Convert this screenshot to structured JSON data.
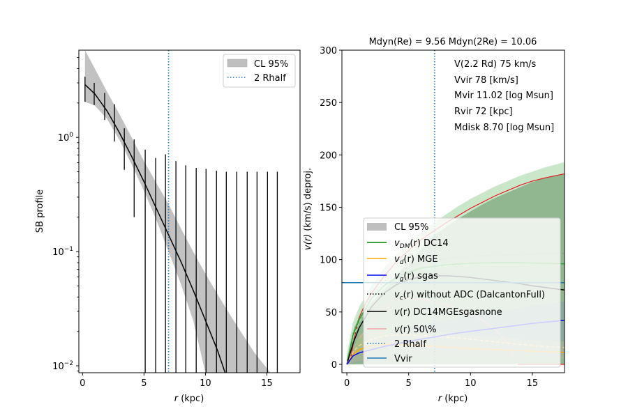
{
  "chart_data": [
    {
      "type": "line",
      "panel": "left",
      "title": "",
      "xlabel": "r (kpc)",
      "xlabel_italic": "r",
      "xlabel_rest": " (kpc)",
      "ylabel": "SB profile",
      "xlim": [
        -0.3,
        17.7
      ],
      "ylim": [
        0.0087,
        5.8
      ],
      "yscale": "log",
      "xticks": [
        0,
        5,
        10,
        15
      ],
      "xtick_labels": [
        "0",
        "5",
        "10",
        "15"
      ],
      "yticks": [
        0.01,
        0.1,
        1
      ],
      "ytick_labels": [
        {
          "base": "10",
          "exp": "−2"
        },
        {
          "base": "10",
          "exp": "−1"
        },
        {
          "base": "10",
          "exp": "0"
        }
      ],
      "model_curve": {
        "name": "model",
        "color": "#000000",
        "x": [
          0.2,
          1.0,
          2.0,
          3.0,
          4.0,
          5.0,
          6.0,
          7.0,
          8.0,
          9.0,
          10.0,
          11.0,
          11.6
        ],
        "y": [
          2.9,
          2.4,
          1.7,
          1.1,
          0.68,
          0.41,
          0.24,
          0.14,
          0.082,
          0.046,
          0.025,
          0.0135,
          0.0087
        ]
      },
      "confidence_band": {
        "name": "CL 95%",
        "color": "#bfbfbf",
        "x": [
          0.2,
          1.0,
          2.0,
          3.0,
          4.0,
          5.0,
          6.0,
          7.0,
          8.0,
          9.0,
          10.0,
          11.0,
          12.0,
          13.0,
          14.0,
          15.0,
          15.3
        ],
        "lower": [
          2.05,
          1.9,
          1.45,
          0.95,
          0.58,
          0.34,
          0.19,
          0.1,
          0.052,
          0.025,
          0.0087,
          0.0087,
          0.0087,
          0.0087,
          0.0087,
          0.0087,
          0.0087
        ],
        "upper": [
          5.8,
          4.0,
          2.5,
          1.6,
          1.0,
          0.62,
          0.4,
          0.26,
          0.16,
          0.1,
          0.064,
          0.042,
          0.028,
          0.019,
          0.013,
          0.0095,
          0.0087
        ]
      },
      "data_points": {
        "name": "SB data",
        "x": [
          0.2,
          0.95,
          1.8,
          2.6,
          3.4,
          4.2,
          5.1,
          5.95,
          6.75,
          7.6,
          8.4,
          9.25,
          10.05,
          10.9,
          11.7,
          12.55,
          13.4,
          14.2,
          15.05,
          15.85
        ],
        "y_low": [
          2.05,
          1.92,
          1.42,
          0.92,
          0.52,
          0.2,
          0.0087,
          0.0087,
          0.0087,
          0.0087,
          0.0087,
          0.0087,
          0.0087,
          0.0087,
          0.0087,
          0.0087,
          0.0087,
          0.0087,
          0.0087,
          0.0087
        ],
        "y_high": [
          3.4,
          3.0,
          2.45,
          1.95,
          1.2,
          0.96,
          0.78,
          0.66,
          0.71,
          0.62,
          0.57,
          0.54,
          0.53,
          0.51,
          0.5,
          0.5,
          0.5,
          0.5,
          0.5,
          0.5
        ]
      },
      "vline": {
        "name": "2 Rhalf",
        "x": 7.0,
        "color": "#1f77b4",
        "style": "dotted"
      },
      "legend": {
        "placement": "upper-right",
        "entries": [
          {
            "label": "CL 95%",
            "kind": "patch",
            "color": "#bfbfbf"
          },
          {
            "label": "2 Rhalf",
            "kind": "dotted",
            "color": "#1f77b4"
          }
        ]
      }
    },
    {
      "type": "line",
      "panel": "right",
      "title": "Mdyn(Re) = 9.56  Mdyn(2Re) = 10.06",
      "xlabel": "r (kpc)",
      "xlabel_italic": "r",
      "xlabel_rest": " (kpc)",
      "ylabel": "v(r) (km/s) deproj.",
      "ylabel_italic": "v(r)",
      "ylabel_rest": " (km/s) deproj.",
      "xlim": [
        -0.4,
        17.6
      ],
      "ylim": [
        -8,
        300
      ],
      "xticks": [
        0,
        5,
        10,
        15
      ],
      "xtick_labels": [
        "0",
        "5",
        "10",
        "15"
      ],
      "yticks": [
        0,
        50,
        100,
        150,
        200,
        250,
        300
      ],
      "ytick_labels": [
        "0",
        "50",
        "100",
        "150",
        "200",
        "250",
        "300"
      ],
      "annotations": [
        "V(2.2 Rd) 75 km/s",
        "Vvir 78 [km/s]",
        "Mvir 11.02 [log Msun]",
        "Rvir 72 [kpc]",
        "Mdisk 8.70 [log Msun]"
      ],
      "bands": [
        {
          "name": "DM band outer",
          "color": "#2ca02c",
          "opacity": 0.25,
          "x": [
            0,
            0.5,
            1,
            2,
            3,
            4,
            5,
            6,
            7,
            8,
            9,
            10,
            11,
            12,
            13,
            14,
            15,
            16,
            17.6
          ],
          "lower": [
            0,
            0,
            0,
            0,
            0,
            0,
            0,
            0,
            0,
            0,
            0,
            0,
            0,
            0,
            0,
            0,
            0,
            0,
            0
          ],
          "upper": [
            10,
            40,
            55,
            75,
            92,
            105,
            116,
            126,
            135,
            143,
            151,
            158,
            164,
            170,
            175,
            180,
            184,
            188,
            193
          ]
        },
        {
          "name": "DM band inner",
          "color": "#4a7c4a",
          "opacity": 0.45,
          "x": [
            0,
            0.3,
            0.6,
            1,
            1.3,
            7,
            8,
            9,
            10,
            11,
            12,
            13,
            14,
            15,
            16,
            17.6
          ],
          "lower": [
            0,
            0,
            0,
            0,
            0,
            0,
            0,
            0,
            0,
            0,
            0,
            0,
            0,
            0,
            0,
            0
          ],
          "upper": [
            5,
            20,
            35,
            45,
            50,
            123,
            131,
            139,
            146,
            153,
            159,
            164,
            169,
            174,
            178,
            182
          ]
        },
        {
          "name": "gas band",
          "color": "#7070e0",
          "opacity": 0.18,
          "x": [
            0,
            2,
            5,
            10,
            15,
            17.6
          ],
          "lower": [
            0,
            4,
            6,
            7,
            7,
            7
          ],
          "upper": [
            0,
            22,
            35,
            47,
            56,
            60
          ]
        },
        {
          "name": "disk band",
          "color": "#ffd27f",
          "opacity": 0.2,
          "x": [
            0,
            1,
            3,
            5,
            8,
            12,
            15,
            17.6
          ],
          "lower": [
            0,
            3,
            5,
            6,
            6,
            6,
            6,
            6
          ],
          "upper": [
            0,
            28,
            34,
            33,
            30,
            26,
            23,
            22
          ]
        }
      ],
      "series": [
        {
          "name": "v(r) 50\\% upper",
          "color": "#e31a1c",
          "width": 1.2,
          "style": "solid",
          "x": [
            0,
            0.3,
            0.6,
            1,
            1.5,
            2,
            3,
            4,
            5,
            6,
            7,
            8,
            9,
            10,
            11,
            12,
            13,
            14,
            15,
            16,
            17.6
          ],
          "y": [
            0,
            5,
            25,
            45,
            58,
            68,
            84,
            98,
            109,
            119,
            127,
            135,
            142,
            149,
            155,
            161,
            166,
            171,
            175,
            178,
            182
          ]
        },
        {
          "name": "v(r) 50\\% lower",
          "color": "#e31a1c",
          "width": 1.2,
          "style": "solid",
          "x": [
            13.8,
            14,
            15,
            16,
            17.6
          ],
          "y": [
            0,
            0,
            0,
            0,
            0
          ]
        },
        {
          "name": "v_c(r) without ADC (DalcantonFull)",
          "color": "#888888",
          "width": 1.2,
          "style": "dotted",
          "x": [
            0,
            0.5,
            1,
            2,
            3,
            4,
            5,
            6,
            8,
            10,
            12,
            14,
            16,
            17.6
          ],
          "y": [
            0,
            30,
            45,
            66,
            79,
            87,
            93,
            97,
            101,
            103,
            104,
            105,
            105.5,
            106
          ]
        },
        {
          "name": "v_DM(r) DC14 dashed",
          "color": "#a6d9a6",
          "width": 1.5,
          "style": "dashed",
          "x": [
            0,
            0.5,
            1,
            2,
            3,
            4,
            5,
            6,
            8,
            10,
            12,
            14,
            16,
            17.6
          ],
          "y": [
            0,
            25,
            40,
            60,
            72,
            80,
            86,
            90,
            94,
            96,
            96.5,
            96.5,
            96.5,
            96
          ]
        },
        {
          "name": "v_DM(r) DC14",
          "color": "#2ca02c",
          "width": 1.5,
          "style": "solid",
          "x": [
            0,
            0.5,
            1,
            2,
            3,
            4,
            5,
            6,
            8,
            10,
            12,
            14,
            16,
            17.6
          ],
          "y": [
            0,
            28,
            43,
            63,
            75,
            83,
            88,
            92,
            95,
            96.5,
            97,
            97,
            96.5,
            96
          ]
        },
        {
          "name": "v(r) DC14MGEsgasnone",
          "color": "#000000",
          "width": 1.5,
          "style": "solid",
          "x": [
            0,
            0.5,
            1,
            2,
            3,
            4,
            5,
            6,
            7,
            8,
            9,
            10,
            11,
            12,
            13,
            14,
            15,
            16,
            17.6
          ],
          "y": [
            0,
            20,
            35,
            55,
            68,
            76,
            81,
            83.5,
            84.5,
            84.5,
            84,
            83,
            81.5,
            80,
            78.5,
            77,
            75,
            73.5,
            71
          ]
        },
        {
          "name": "v(r) 50\\% band edge",
          "color": "#f4a6a6",
          "width": 1.0,
          "style": "solid",
          "x": [
            1,
            2,
            3,
            4,
            5,
            6,
            7,
            8,
            9,
            10,
            11,
            12,
            13,
            13.5,
            13.8
          ],
          "y": [
            25,
            40,
            55,
            62,
            63,
            62,
            60,
            57,
            53,
            48,
            42,
            33,
            20,
            8,
            0
          ]
        },
        {
          "name": "v_d(r) MGE dashed",
          "color": "#ffd27f",
          "width": 1.5,
          "style": "dashed",
          "x": [
            0,
            0.5,
            1,
            2,
            3,
            4,
            5,
            6,
            8,
            10,
            12,
            14,
            16,
            17.6
          ],
          "y": [
            0,
            12,
            18,
            24,
            27,
            28,
            28,
            27.5,
            26,
            24,
            21.5,
            19,
            17,
            16
          ]
        },
        {
          "name": "v_d(r) MGE",
          "color": "#ffa500",
          "width": 1.5,
          "style": "solid",
          "x": [
            0,
            0.5,
            1,
            2,
            3,
            4,
            5,
            6,
            8,
            10,
            12,
            14,
            16,
            17.6
          ],
          "y": [
            0,
            9,
            14,
            18,
            19,
            19,
            18.5,
            18,
            16.5,
            15,
            14,
            13,
            12,
            11.5
          ]
        },
        {
          "name": "v_g(r) sgas",
          "color": "#0000ff",
          "width": 1.5,
          "style": "solid",
          "x": [
            0,
            0.5,
            1,
            2,
            3,
            5,
            7,
            9,
            11,
            13,
            15,
            17.6
          ],
          "y": [
            0,
            8,
            11,
            14,
            17,
            22,
            26,
            30,
            33,
            36,
            39,
            42
          ]
        }
      ],
      "hline": {
        "name": "Vvir",
        "y": 78,
        "color": "#1f77b4",
        "style": "solid"
      },
      "vline": {
        "name": "2 Rhalf",
        "x": 7.1,
        "color": "#1f77b4",
        "style": "dotted"
      },
      "legend": {
        "placement": "lower-right",
        "entries": [
          {
            "label": "CL 95%",
            "kind": "patch",
            "color": "#bfbfbf"
          },
          {
            "label_italic": "v",
            "label_sub": "DM",
            "label_mid": "(r)",
            "label_rest": " DC14",
            "kind": "line",
            "color": "#008000"
          },
          {
            "label_italic": "v",
            "label_sub": "d",
            "label_mid": "(r)",
            "label_rest": " MGE",
            "kind": "line",
            "color": "#ffa500"
          },
          {
            "label_italic": "v",
            "label_sub": "g",
            "label_mid": "(r)",
            "label_rest": " sgas",
            "kind": "line",
            "color": "#0000ff"
          },
          {
            "label_italic": "v",
            "label_sub": "c",
            "label_mid": "(r)",
            "label_rest": " without ADC (DalcantonFull)",
            "kind": "dotted-black",
            "color": "#000000"
          },
          {
            "label_italic": "v",
            "label_sub": "",
            "label_mid": "(r)",
            "label_rest": " DC14MGEsgasnone",
            "kind": "line",
            "color": "#000000"
          },
          {
            "label_italic": "v",
            "label_sub": "",
            "label_mid": "(r)",
            "label_rest": " 50\\%",
            "kind": "line",
            "color": "#f4a6a6"
          },
          {
            "label": "2 Rhalf",
            "kind": "dotted",
            "color": "#1f77b4"
          },
          {
            "label": "Vvir",
            "kind": "line",
            "color": "#1f77b4"
          }
        ]
      }
    }
  ]
}
